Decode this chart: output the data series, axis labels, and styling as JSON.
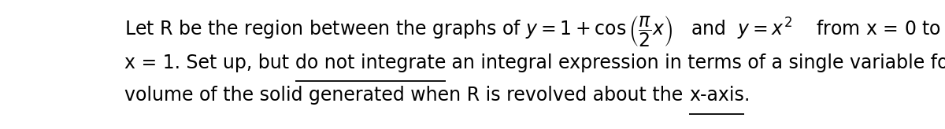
{
  "background_color": "#ffffff",
  "figsize": [
    12.0,
    1.64
  ],
  "dpi": 100,
  "line1": "Let R be the region between the graphs of $y = 1 + \\cos\\left(\\dfrac{\\pi}{2}x\\right)$   and  $y = x^2$    from x = 0 to",
  "line2_plain": "x = 1. Set up, but ",
  "line2_underline": "do not integrate",
  "line2_end": " an integral expression in terms of a single variable for the",
  "line3_plain": "volume of the solid generated when R is revolved about the ",
  "line3_underline": "x-axis",
  "line3_dot": ".",
  "fontsize": 17.0,
  "fontfamily": "DejaVu Sans",
  "text_color": "#000000",
  "underline_lw": 1.3
}
